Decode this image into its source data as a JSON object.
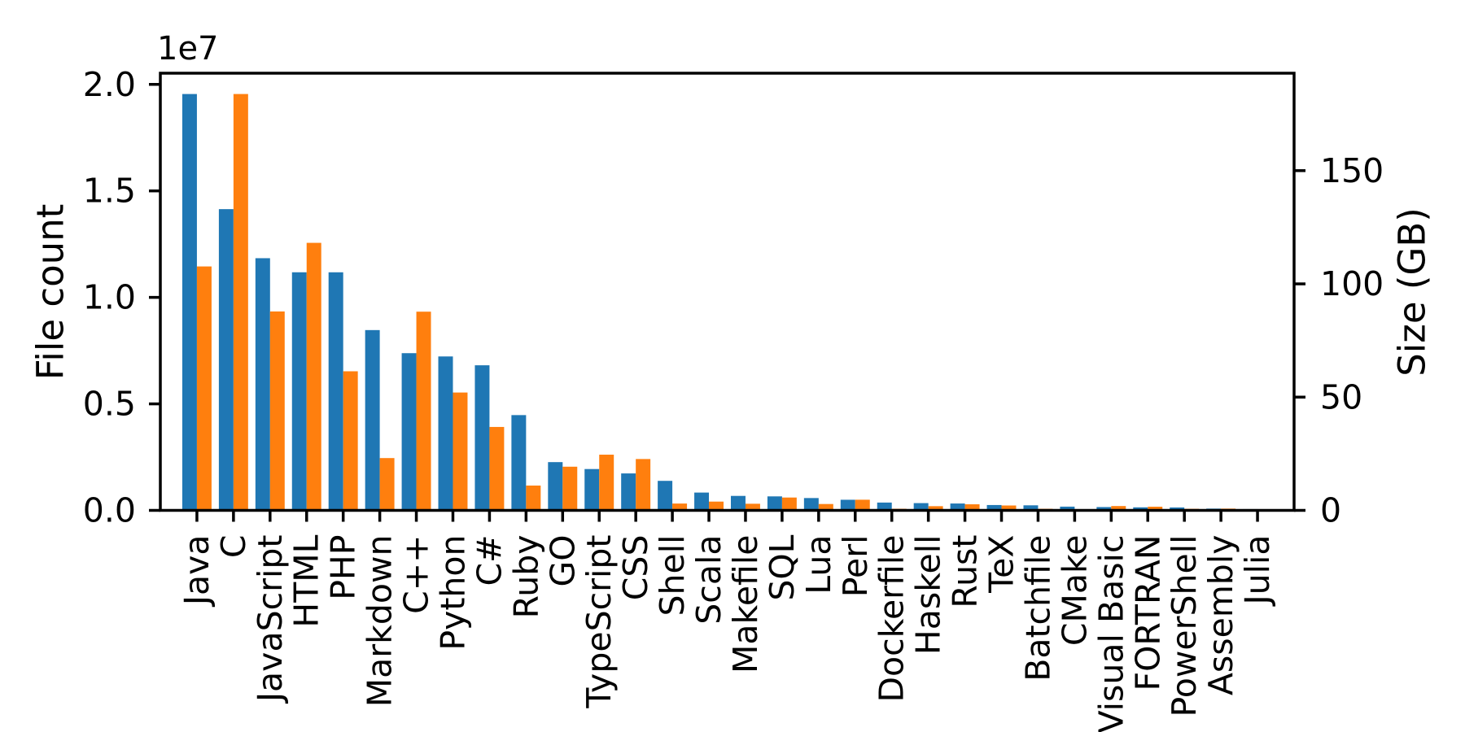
{
  "figure": {
    "background": "#ffffff"
  },
  "chart_data": {
    "type": "bar",
    "title": "",
    "subtitle": "",
    "grid": false,
    "legend": false,
    "bar_width_units": 0.4,
    "categories": [
      "Java",
      "C",
      "JavaScript",
      "HTML",
      "PHP",
      "Markdown",
      "C++",
      "Python",
      "C#",
      "Ruby",
      "GO",
      "TypeScript",
      "CSS",
      "Shell",
      "Scala",
      "Makefile",
      "SQL",
      "Lua",
      "Perl",
      "Dockerfile",
      "Haskell",
      "Rust",
      "TeX",
      "Batchfile",
      "CMake",
      "Visual Basic",
      "FORTRAN",
      "PowerShell",
      "Assembly",
      "Julia"
    ],
    "series": [
      {
        "name": "File count",
        "axis": "left",
        "color": "#1f77b4",
        "values": [
          19548190,
          14143113,
          11839883,
          11178557,
          11177610,
          8464626,
          7380520,
          7226626,
          6811652,
          4473331,
          2265436,
          1940406,
          1734406,
          1385648,
          835755,
          679430,
          656671,
          578554,
          497949,
          366505,
          340623,
          322431,
          251015,
          236945,
          175282,
          155652,
          142038,
          136846,
          82905,
          58317
        ]
      },
      {
        "name": "Size (GB)",
        "axis": "right",
        "color": "#ff7f0e",
        "values": [
          107.7,
          183.83,
          87.82,
          118.12,
          61.41,
          23.09,
          87.73,
          52.03,
          36.83,
          10.95,
          19.28,
          24.59,
          22.67,
          3.01,
          3.87,
          2.92,
          5.67,
          2.81,
          4.7,
          0.71,
          1.85,
          2.68,
          2.15,
          0.7,
          0.54,
          1.91,
          1.62,
          0.69,
          0.78,
          0.29
        ]
      }
    ],
    "left_axis": {
      "label": "File count",
      "label_color": "#1f77b4",
      "tick_values": [
        0,
        5000000,
        10000000,
        15000000,
        20000000
      ],
      "tick_labels": [
        "0.0",
        "0.5",
        "1.0",
        "1.5",
        "2.0"
      ],
      "offset_text": "1e7",
      "ylim": [
        0,
        20525600
      ]
    },
    "right_axis": {
      "label": "Size (GB)",
      "label_color": "#ff7f0e",
      "tick_values": [
        0,
        50,
        100,
        150
      ],
      "tick_labels": [
        "0",
        "50",
        "100",
        "150"
      ],
      "ylim": [
        0,
        193.02
      ]
    },
    "x_axis": {
      "tick_label_rotation": 90,
      "xlim_units": [
        -1,
        30
      ]
    },
    "axis_color": "#000000"
  }
}
